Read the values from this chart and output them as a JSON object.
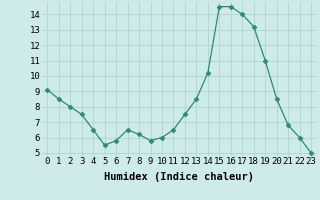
{
  "x": [
    0,
    1,
    2,
    3,
    4,
    5,
    6,
    7,
    8,
    9,
    10,
    11,
    12,
    13,
    14,
    15,
    16,
    17,
    18,
    19,
    20,
    21,
    22,
    23
  ],
  "y": [
    9.1,
    8.5,
    8.0,
    7.5,
    6.5,
    5.5,
    5.8,
    6.5,
    6.2,
    5.8,
    6.0,
    6.5,
    7.5,
    8.5,
    10.2,
    14.5,
    14.5,
    14.0,
    13.2,
    11.0,
    8.5,
    6.8,
    6.0,
    5.0
  ],
  "xlabel": "Humidex (Indice chaleur)",
  "ylim_min": 4.8,
  "ylim_max": 14.8,
  "xlim_min": -0.5,
  "xlim_max": 23.5,
  "yticks": [
    5,
    6,
    7,
    8,
    9,
    10,
    11,
    12,
    13,
    14
  ],
  "xticks": [
    0,
    1,
    2,
    3,
    4,
    5,
    6,
    7,
    8,
    9,
    10,
    11,
    12,
    13,
    14,
    15,
    16,
    17,
    18,
    19,
    20,
    21,
    22,
    23
  ],
  "line_color": "#2d8b74",
  "marker": "D",
  "marker_size": 2.5,
  "bg_color": "#ceeaea",
  "grid_color": "#aed4d4",
  "tick_label_fontsize": 6.5,
  "xlabel_fontsize": 7.5
}
